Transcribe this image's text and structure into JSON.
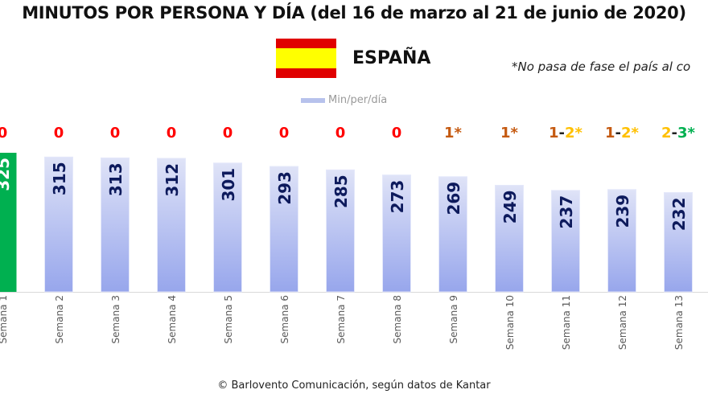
{
  "chart_data": {
    "type": "bar",
    "title": "MINUTOS POR PERSONA Y DÍA (del 16 de marzo al 21 de junio de 2020)",
    "subtitle": "ESPAÑA",
    "note": "*No pasa de fase el país al co",
    "legend": [
      "Min/per/día"
    ],
    "categories": [
      "Semana 1",
      "Semana 2",
      "Semana 3",
      "Semana 4",
      "Semana 5",
      "Semana 6",
      "Semana 7",
      "Semana 8",
      "Semana 9",
      "Semana 10",
      "Semana 11",
      "Semana 12",
      "Semana 13"
    ],
    "values": [
      325,
      315,
      313,
      312,
      301,
      293,
      285,
      273,
      269,
      249,
      237,
      239,
      232
    ],
    "highlight_index": 0,
    "phases": [
      [
        {
          "t": "0",
          "c": "#ff0000"
        }
      ],
      [
        {
          "t": "0",
          "c": "#ff0000"
        }
      ],
      [
        {
          "t": "0",
          "c": "#ff0000"
        }
      ],
      [
        {
          "t": "0",
          "c": "#ff0000"
        }
      ],
      [
        {
          "t": "0",
          "c": "#ff0000"
        }
      ],
      [
        {
          "t": "0",
          "c": "#ff0000"
        }
      ],
      [
        {
          "t": "0",
          "c": "#ff0000"
        }
      ],
      [
        {
          "t": "0",
          "c": "#ff0000"
        }
      ],
      [
        {
          "t": "1*",
          "c": "#c55a11"
        }
      ],
      [
        {
          "t": "1*",
          "c": "#c55a11"
        }
      ],
      [
        {
          "t": "1",
          "c": "#c55a11"
        },
        {
          "t": "-",
          "c": "#222222"
        },
        {
          "t": "2*",
          "c": "#ffc000"
        }
      ],
      [
        {
          "t": "1",
          "c": "#c55a11"
        },
        {
          "t": "-",
          "c": "#222222"
        },
        {
          "t": "2*",
          "c": "#ffc000"
        }
      ],
      [
        {
          "t": "2",
          "c": "#ffc000"
        },
        {
          "t": "-",
          "c": "#222222"
        },
        {
          "t": "3*",
          "c": "#00b050"
        }
      ]
    ],
    "ylim": [
      0,
      325
    ],
    "grid": false,
    "legend_position": "top",
    "colors": {
      "bar_top": "#dfe3f7",
      "bar_bottom": "#97a6ec",
      "highlight": "#00b050",
      "value_label": "#0d1a5c",
      "highlight_label": "#ffffff"
    }
  },
  "flag": {
    "country": "Spain",
    "colors": [
      "#e00000",
      "#ffff00",
      "#e00000"
    ]
  },
  "footer": "© Barlovento Comunicación, según datos de Kantar"
}
